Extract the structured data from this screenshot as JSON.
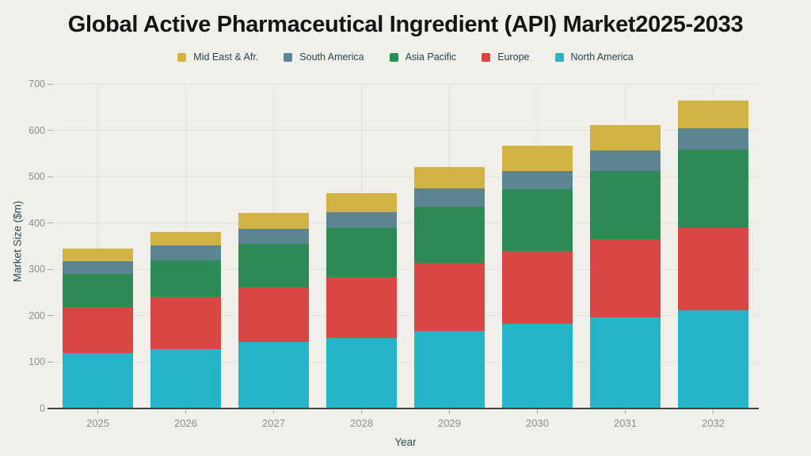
{
  "page": {
    "background": "#f1efe9",
    "title_color": "#141414",
    "gridline_color": "#e3e1da",
    "axis_line_color": "#43423d",
    "tick_label_color": "#8f8e88",
    "axis_label_color": "#2a4d57",
    "legend_text_color": "#25454f"
  },
  "chart_data": {
    "type": "bar",
    "stacked": true,
    "title": "Global Active Pharmaceutical Ingredient (API) Market2025-2033",
    "xlabel": "Year",
    "ylabel": "Market Size ($m)",
    "categories": [
      "2025",
      "2026",
      "2027",
      "2028",
      "2029",
      "2030",
      "2031",
      "2032"
    ],
    "series": [
      {
        "name": "North America",
        "color": "#26b5c8",
        "values": [
          119,
          128,
          144,
          152,
          168,
          183,
          196,
          212
        ]
      },
      {
        "name": "Europe",
        "color": "#d94745",
        "values": [
          100,
          112,
          118,
          131,
          146,
          157,
          169,
          177
        ]
      },
      {
        "name": "Asia Pacific",
        "color": "#2e8b55",
        "values": [
          72,
          80,
          93,
          106,
          121,
          133,
          148,
          170
        ]
      },
      {
        "name": "South America",
        "color": "#5d8493",
        "values": [
          27,
          31,
          33,
          35,
          39,
          40,
          44,
          46
        ]
      },
      {
        "name": "Mid East & Afr.",
        "color": "#d1b343",
        "values": [
          27,
          30,
          34,
          40,
          46,
          53,
          54,
          60
        ]
      }
    ],
    "totals": [
      345,
      381,
      422,
      464,
      520,
      566,
      611,
      665
    ],
    "legend": [
      {
        "label": "Mid East & Afr.",
        "color": "#d1b343"
      },
      {
        "label": "South America",
        "color": "#5d8493"
      },
      {
        "label": "Asia Pacific",
        "color": "#2e8b55"
      },
      {
        "label": "Europe",
        "color": "#d94745"
      },
      {
        "label": "North America",
        "color": "#26b5c8"
      }
    ],
    "legend_position": "top-center",
    "grid": true,
    "ylim": [
      0,
      700
    ],
    "yticks": [
      0,
      100,
      200,
      300,
      400,
      500,
      600,
      700
    ]
  }
}
